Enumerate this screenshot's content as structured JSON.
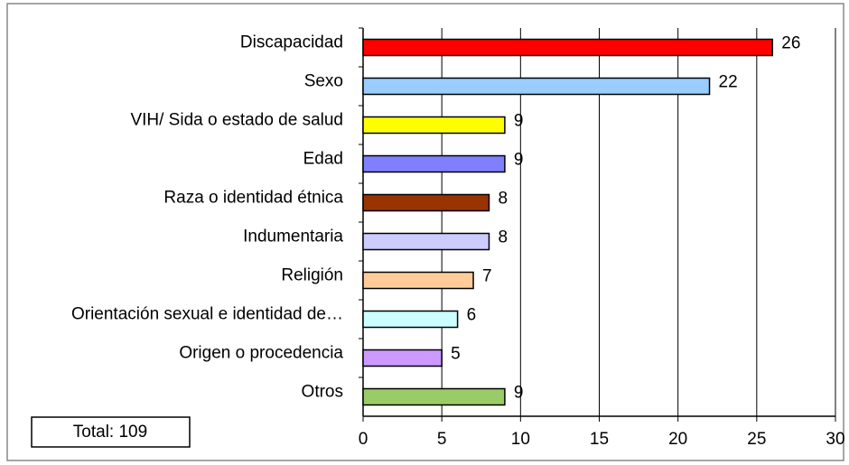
{
  "chart_data": {
    "type": "hbar",
    "categories": [
      "Discapacidad",
      "Sexo",
      "VIH/ Sida o estado de salud",
      "Edad",
      "Raza o identidad étnica",
      "Indumentaria",
      "Religión",
      "Orientación sexual e identidad de…",
      "Origen o procedencia",
      "Otros"
    ],
    "values": [
      26,
      22,
      9,
      9,
      8,
      8,
      7,
      6,
      5,
      9
    ],
    "colors": [
      "#ff0000",
      "#99ccff",
      "#ffff00",
      "#8080ff",
      "#993300",
      "#ccccff",
      "#ffcc99",
      "#ccffff",
      "#cc99ff",
      "#99cc66"
    ],
    "xlim": [
      0,
      30
    ],
    "xticks": [
      0,
      5,
      10,
      15,
      20,
      25,
      30
    ],
    "grid": true,
    "annotation": "Total: 109"
  }
}
